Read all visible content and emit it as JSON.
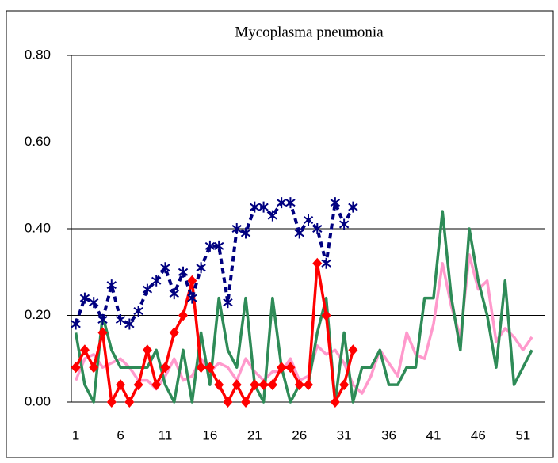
{
  "chart_data": {
    "type": "line",
    "title": "Mycoplasma pneumonia",
    "x": [
      1,
      2,
      3,
      4,
      5,
      6,
      7,
      8,
      9,
      10,
      11,
      12,
      13,
      14,
      15,
      16,
      17,
      18,
      19,
      20,
      21,
      22,
      23,
      24,
      25,
      26,
      27,
      28,
      29,
      30,
      31,
      32,
      33,
      34,
      35,
      36,
      37,
      38,
      39,
      40,
      41,
      42,
      43,
      44,
      45,
      46,
      47,
      48,
      49,
      50,
      51,
      52
    ],
    "xlim": [
      0.5,
      53.5
    ],
    "xticks": [
      1,
      6,
      11,
      16,
      21,
      26,
      31,
      36,
      41,
      46,
      51
    ],
    "ylim": [
      0,
      0.8
    ],
    "yticks": [
      {
        "value": 0,
        "label": "0.00"
      },
      {
        "value": 0.2,
        "label": "0.20"
      },
      {
        "value": 0.4,
        "label": "0.40"
      },
      {
        "value": 0.6,
        "label": "0.60"
      },
      {
        "value": 0.8,
        "label": "0.80"
      }
    ],
    "grid": true,
    "series": [
      {
        "color": "#ff99cc",
        "marker": "none",
        "dashed": false,
        "values": [
          0.05,
          0.1,
          0.11,
          0.08,
          0.09,
          0.1,
          0.08,
          0.05,
          0.05,
          0.03,
          0.06,
          0.1,
          0.05,
          0.06,
          0.1,
          0.07,
          0.09,
          0.08,
          0.05,
          0.1,
          0.07,
          0.05,
          0.07,
          0.07,
          0.1,
          0.05,
          0.06,
          0.13,
          0.11,
          0.12,
          0.09,
          0.04,
          0.02,
          0.06,
          0.12,
          0.09,
          0.06,
          0.16,
          0.11,
          0.1,
          0.18,
          0.32,
          0.22,
          0.15,
          0.34,
          0.26,
          0.28,
          0.14,
          0.17,
          0.15,
          0.12,
          0.15
        ]
      },
      {
        "color": "#2e8b57",
        "marker": "none",
        "dashed": false,
        "values": [
          0.16,
          0.04,
          0.0,
          0.2,
          0.12,
          0.08,
          0.08,
          0.08,
          0.08,
          0.12,
          0.04,
          0.0,
          0.12,
          0.0,
          0.16,
          0.04,
          0.24,
          0.12,
          0.08,
          0.24,
          0.04,
          0.0,
          0.24,
          0.08,
          0.0,
          0.04,
          0.04,
          0.16,
          0.24,
          0.0,
          0.16,
          0.0,
          0.08,
          0.08,
          0.12,
          0.04,
          0.04,
          0.08,
          0.08,
          0.24,
          0.24,
          0.44,
          0.24,
          0.12,
          0.4,
          0.28,
          0.2,
          0.08,
          0.28,
          0.04,
          0.08,
          0.12
        ]
      },
      {
        "color": "#ff0000",
        "marker": "diamond",
        "dashed": false,
        "values": [
          0.08,
          0.12,
          0.08,
          0.16,
          0.0,
          0.04,
          0.0,
          0.04,
          0.12,
          0.04,
          0.08,
          0.16,
          0.2,
          0.28,
          0.08,
          0.08,
          0.04,
          0.0,
          0.04,
          0.0,
          0.04,
          0.04,
          0.04,
          0.08,
          0.08,
          0.04,
          0.04,
          0.32,
          0.2,
          0.0,
          0.04,
          0.12,
          null,
          null,
          null,
          null,
          null,
          null,
          null,
          null,
          null,
          null,
          null,
          null,
          null,
          null,
          null,
          null,
          null,
          null,
          null,
          null
        ]
      },
      {
        "color": "#000080",
        "marker": "asterisk",
        "dashed": true,
        "values": [
          0.18,
          0.24,
          0.23,
          0.19,
          0.27,
          0.19,
          0.18,
          0.21,
          0.26,
          0.28,
          0.31,
          0.25,
          0.3,
          0.24,
          0.31,
          0.36,
          0.36,
          0.23,
          0.4,
          0.39,
          0.45,
          0.45,
          0.43,
          0.46,
          0.46,
          0.39,
          0.42,
          0.4,
          0.32,
          0.46,
          0.41,
          0.45,
          null,
          null,
          null,
          null,
          null,
          null,
          null,
          null,
          null,
          null,
          null,
          null,
          null,
          null,
          null,
          null,
          null,
          null,
          null,
          null
        ]
      }
    ]
  }
}
